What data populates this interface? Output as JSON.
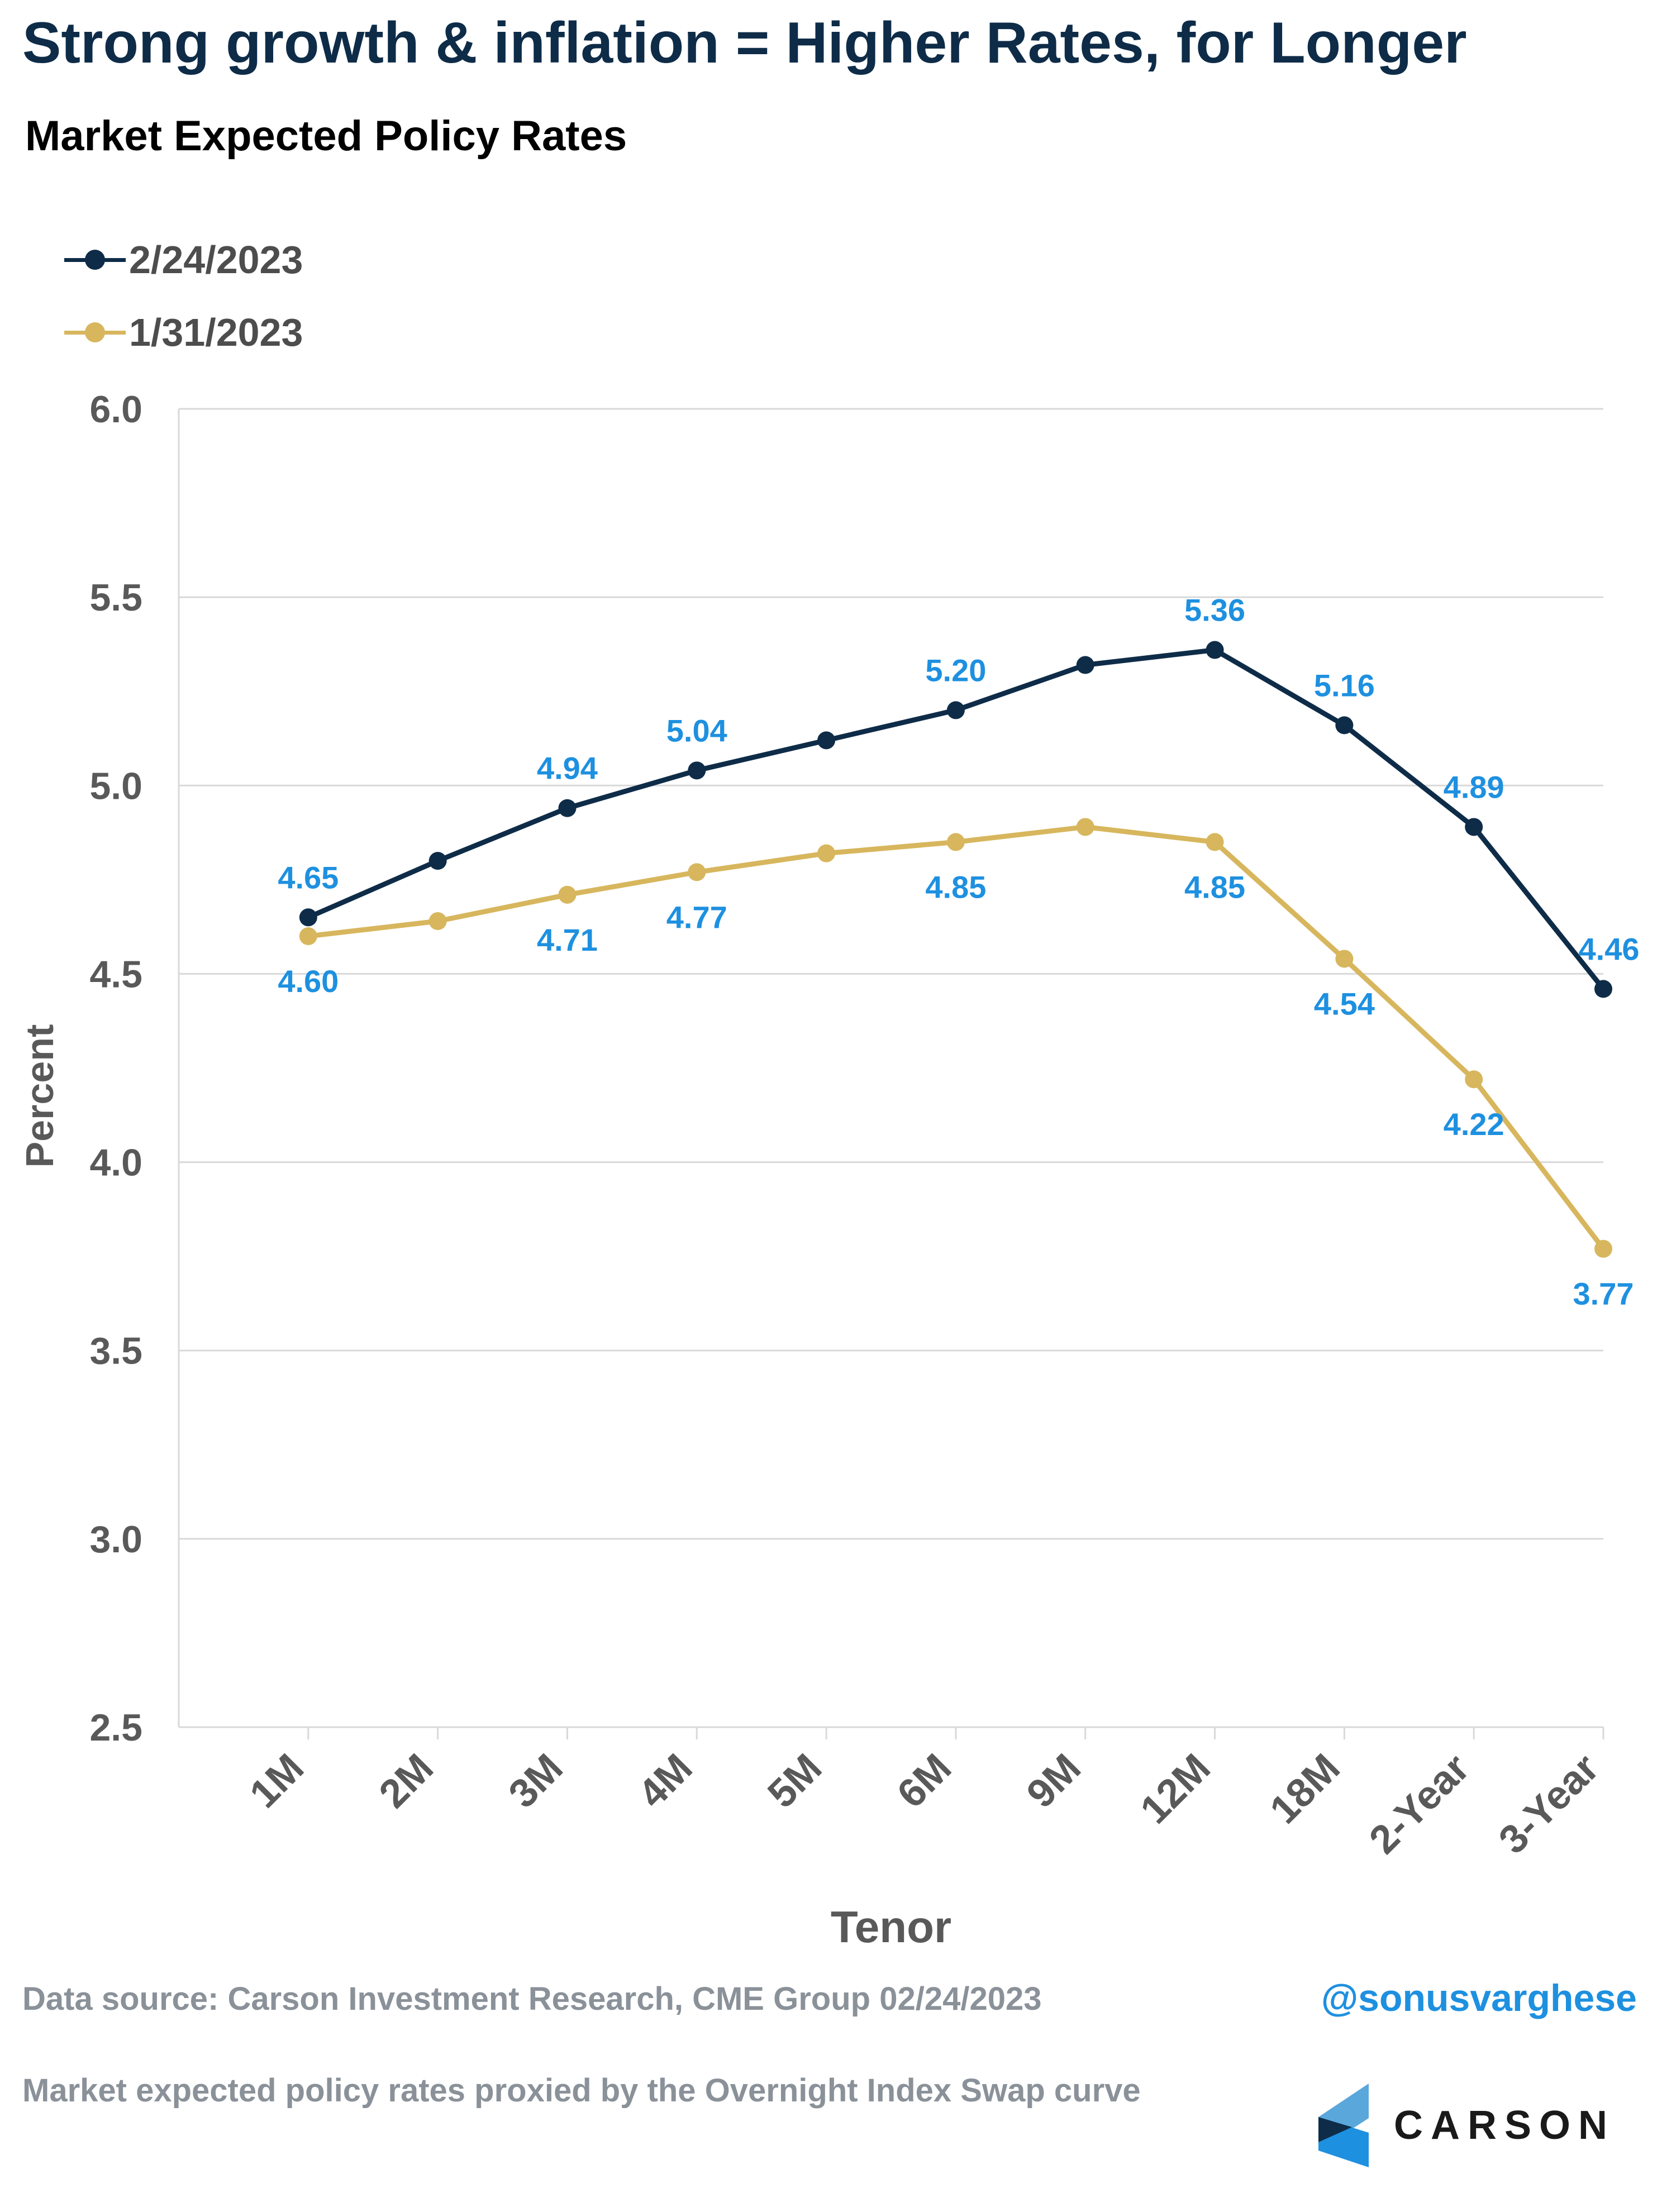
{
  "header": {
    "title": "Strong growth & inflation = Higher Rates, for Longer",
    "subtitle": "Market Expected Policy Rates"
  },
  "legend": [
    {
      "label": "2/24/2023",
      "color": "#0e2c48"
    },
    {
      "label": "1/31/2023",
      "color": "#d7b65d"
    }
  ],
  "footer": {
    "source": "Data source: Carson Investment Research, CME Group   02/24/2023",
    "handle": "@sonusvarghese",
    "note": "Market expected policy rates proxied by the Overnight Index Swap curve",
    "logo_text": "CARSON"
  },
  "colors": {
    "series_dark": "#0e2c48",
    "series_gold": "#d7b65d",
    "data_label": "#1e90e0",
    "axis_text": "#595959",
    "grid": "#d9d9d9"
  },
  "chart_data": {
    "type": "line",
    "xlabel": "Tenor",
    "ylabel": "Percent",
    "ylim": [
      2.5,
      6.0
    ],
    "yticks": [
      "2.5",
      "3.0",
      "3.5",
      "4.0",
      "4.5",
      "5.0",
      "5.5",
      "6.0"
    ],
    "grid": true,
    "legend_position": "top-left",
    "categories": [
      "1M",
      "2M",
      "3M",
      "4M",
      "5M",
      "6M",
      "9M",
      "12M",
      "18M",
      "2-Year",
      "3-Year"
    ],
    "series": [
      {
        "name": "2/24/2023",
        "color": "#0e2c48",
        "values": [
          4.65,
          4.8,
          4.94,
          5.04,
          5.12,
          5.2,
          5.32,
          5.36,
          5.16,
          4.89,
          4.46
        ],
        "labels": [
          "4.65",
          "",
          "4.94",
          "5.04",
          "",
          "5.20",
          "",
          "5.36",
          "5.16",
          "4.89",
          "4.46"
        ]
      },
      {
        "name": "1/31/2023",
        "color": "#d7b65d",
        "values": [
          4.6,
          4.64,
          4.71,
          4.77,
          4.82,
          4.85,
          4.89,
          4.85,
          4.54,
          4.22,
          3.77
        ],
        "labels": [
          "4.60",
          "",
          "4.71",
          "4.77",
          "",
          "4.85",
          "",
          "4.85",
          "4.54",
          "4.22",
          "3.77"
        ]
      }
    ]
  }
}
